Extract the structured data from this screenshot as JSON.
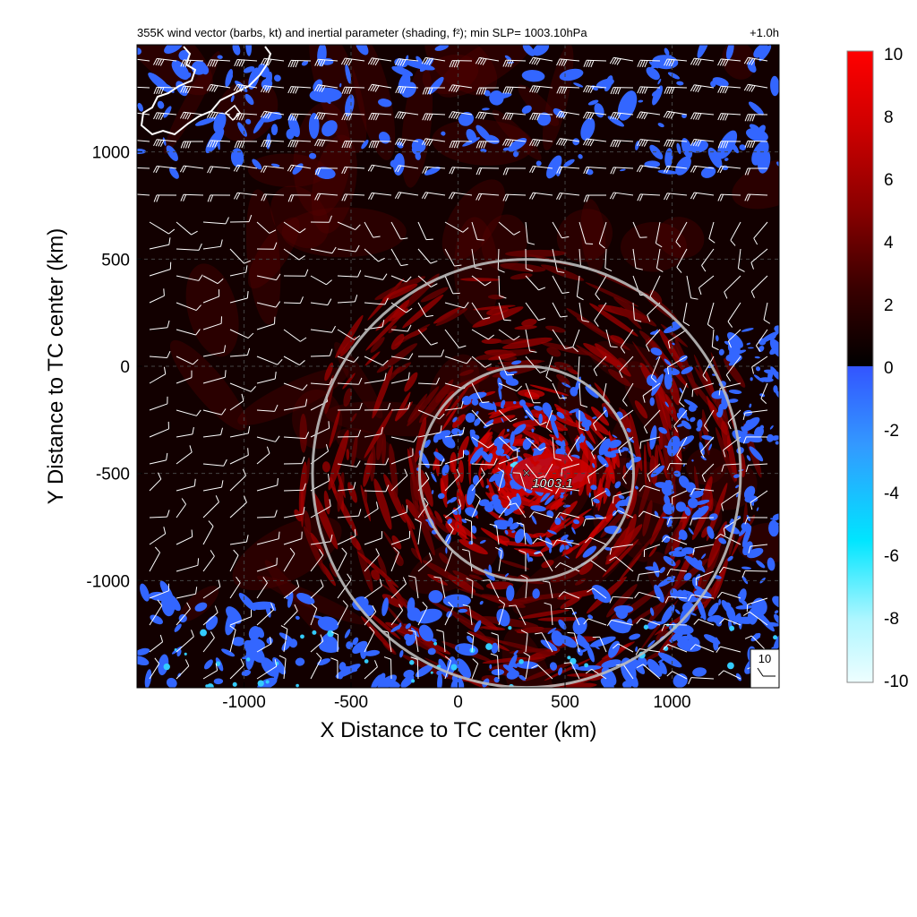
{
  "chart_data": {
    "type": "heatmap",
    "title": "355K wind vector (barbs, kt) and inertial parameter (shading, f²); min SLP= 1003.10hPa",
    "time_label": "+1.0h",
    "xlabel": "X Distance to TC center (km)",
    "ylabel": "Y Distance to TC center (km)",
    "xlim": [
      -1500,
      1500
    ],
    "ylim": [
      -1500,
      1500
    ],
    "x_ticks": [
      -1000,
      -500,
      0,
      500,
      1000
    ],
    "x_tick_labels": [
      "-1000",
      "-500",
      "0",
      "500",
      "1000"
    ],
    "y_ticks": [
      -1000,
      -500,
      0,
      500,
      1000
    ],
    "y_tick_labels": [
      "-1000",
      "-500",
      "0",
      "500",
      "1000"
    ],
    "grid": "dashed",
    "colorbar": {
      "ticks": [
        10,
        8,
        6,
        4,
        2,
        0,
        -2,
        -4,
        -6,
        -8,
        -10
      ],
      "tick_labels": [
        "10",
        "8",
        "6",
        "4",
        "2",
        "0",
        "-2",
        "-4",
        "-6",
        "-8",
        "-10"
      ],
      "range": [
        -10,
        10
      ],
      "colors_positive": [
        "#000000",
        "#3a0000",
        "#8a0000",
        "#cc0000",
        "#ff0000"
      ],
      "colors_negative": [
        "#3355ff",
        "#3399ff",
        "#00e5ff",
        "#aef6ff",
        "#eefeff"
      ]
    },
    "circles": [
      {
        "center": [
          320,
          -500
        ],
        "radius_km": 500,
        "color": "#bbbbbb"
      },
      {
        "center": [
          320,
          -500
        ],
        "radius_km": 1000,
        "color": "#bbbbbb"
      }
    ],
    "min_slp_marker": {
      "x": 320,
      "y": -500,
      "label": "1003.1"
    },
    "barb_reference": {
      "label": "10",
      "speed_kt": 10
    },
    "background": {
      "land_outline_color": "#ffffff",
      "shading_positive_color": "#cc0000",
      "shading_negative_color": "#3366ff"
    }
  }
}
